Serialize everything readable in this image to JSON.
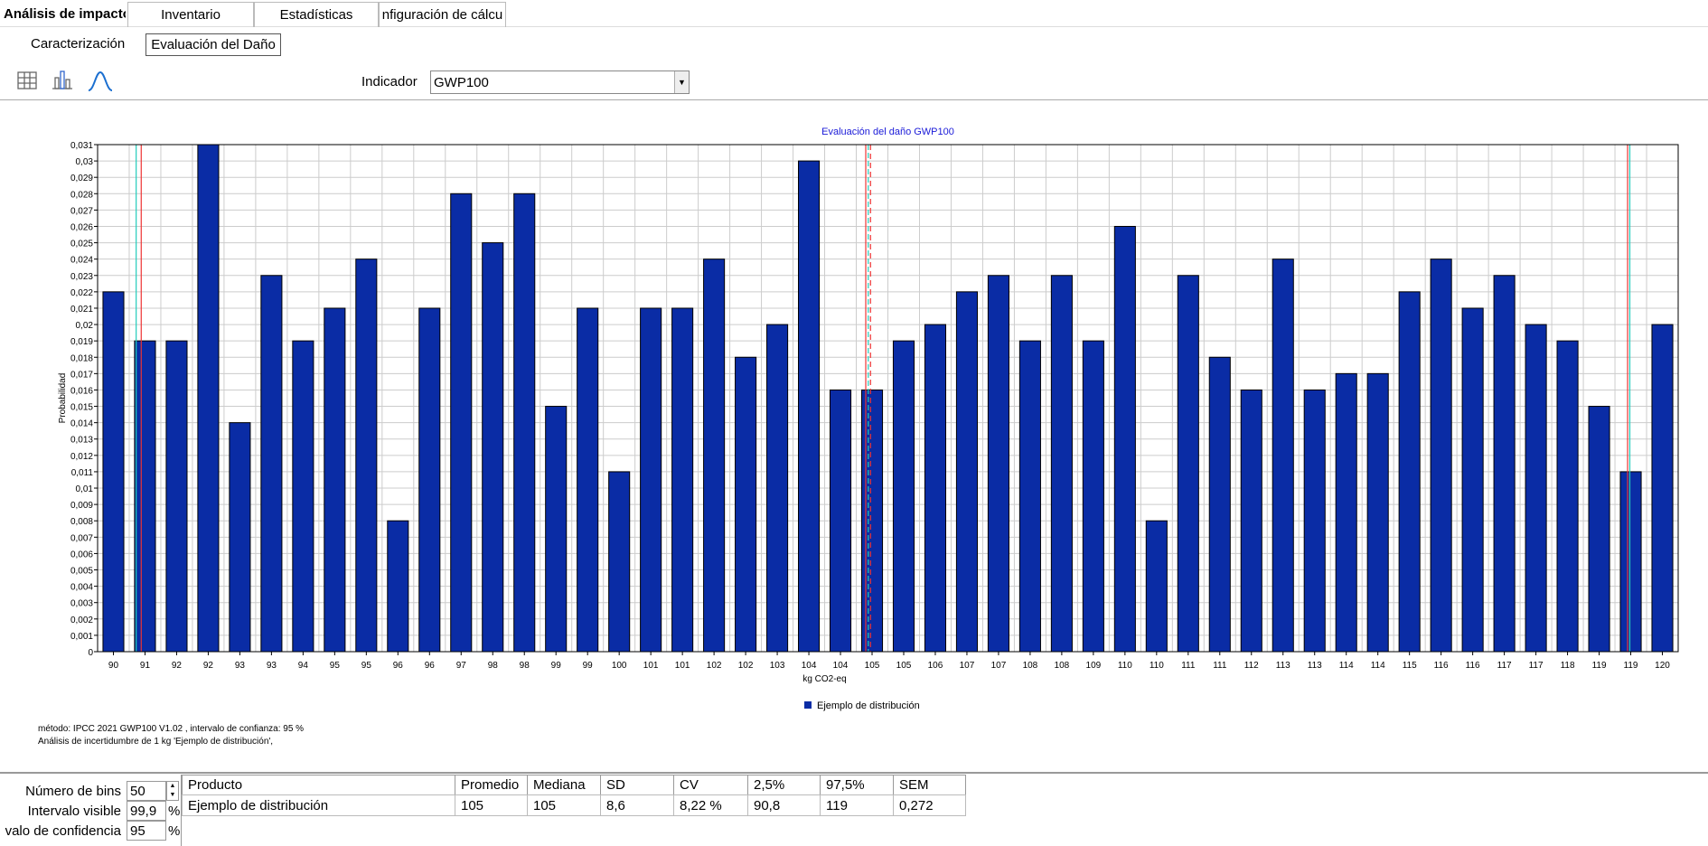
{
  "tabs": [
    "Análisis de impacto",
    "Inventario",
    "Estadísticas",
    "nfiguración de cálcu"
  ],
  "subtabs": [
    "Caracterización",
    "Evaluación del Daño"
  ],
  "indicator_label": "Indicador",
  "indicator_value": "GWP100",
  "chart_data": {
    "type": "bar",
    "title": "Evaluación del daño GWP100",
    "x_label": "kg CO2-eq",
    "y_label": "Probabilidad",
    "categories": [
      "90",
      "91",
      "92",
      "92",
      "93",
      "93",
      "94",
      "95",
      "95",
      "96",
      "96",
      "97",
      "98",
      "98",
      "99",
      "99",
      "100",
      "101",
      "101",
      "102",
      "102",
      "103",
      "104",
      "104",
      "105",
      "105",
      "106",
      "107",
      "107",
      "108",
      "108",
      "109",
      "110",
      "110",
      "111",
      "111",
      "112",
      "113",
      "113",
      "114",
      "114",
      "115",
      "116",
      "116",
      "117",
      "117",
      "118",
      "119",
      "119",
      "120"
    ],
    "series": [
      {
        "name": "Ejemplo de distribución",
        "color": "#0a2ca5",
        "values": [
          0.022,
          0.019,
          0.019,
          0.031,
          0.014,
          0.023,
          0.019,
          0.021,
          0.024,
          0.008,
          0.021,
          0.028,
          0.025,
          0.028,
          0.015,
          0.021,
          0.011,
          0.021,
          0.021,
          0.024,
          0.018,
          0.02,
          0.03,
          0.016,
          0.016,
          0.019,
          0.02,
          0.022,
          0.023,
          0.019,
          0.023,
          0.019,
          0.026,
          0.008,
          0.023,
          0.018,
          0.016,
          0.024,
          0.016,
          0.017,
          0.017,
          0.022,
          0.024,
          0.021,
          0.023,
          0.02,
          0.019,
          0.015,
          0.011,
          0.02
        ]
      }
    ],
    "ylim": [
      0,
      0.031
    ],
    "yticks": [
      0,
      {
        "value": 0.001,
        "label": "0,001"
      },
      {
        "value": 0.002,
        "label": "0,002"
      },
      {
        "value": 0.003,
        "label": "0,003"
      },
      {
        "value": 0.004,
        "label": "0,004"
      },
      {
        "value": 0.005,
        "label": "0,005"
      },
      {
        "value": 0.006,
        "label": "0,006"
      },
      {
        "value": 0.007,
        "label": "0,007"
      },
      {
        "value": 0.008,
        "label": "0,008"
      },
      {
        "value": 0.009,
        "label": "0,009"
      },
      {
        "value": 0.01,
        "label": "0,01"
      },
      {
        "value": 0.011,
        "label": "0,011"
      },
      {
        "value": 0.012,
        "label": "0,012"
      },
      {
        "value": 0.013,
        "label": "0,013"
      },
      {
        "value": 0.014,
        "label": "0,014"
      },
      {
        "value": 0.015,
        "label": "0,015"
      },
      {
        "value": 0.016,
        "label": "0,016"
      },
      {
        "value": 0.017,
        "label": "0,017"
      },
      {
        "value": 0.018,
        "label": "0,018"
      },
      {
        "value": 0.019,
        "label": "0,019"
      },
      {
        "value": 0.02,
        "label": "0,02"
      },
      {
        "value": 0.021,
        "label": "0,021"
      },
      {
        "value": 0.022,
        "label": "0,022"
      },
      {
        "value": 0.023,
        "label": "0,023"
      },
      {
        "value": 0.024,
        "label": "0,024"
      },
      {
        "value": 0.025,
        "label": "0,025"
      },
      {
        "value": 0.026,
        "label": "0,026"
      },
      {
        "value": 0.027,
        "label": "0,027"
      },
      {
        "value": 0.028,
        "label": "0,028"
      },
      {
        "value": 0.029,
        "label": "0,029"
      },
      {
        "value": 0.03,
        "label": "0,03"
      },
      {
        "value": 0.031,
        "label": "0,031"
      }
    ],
    "grid": true,
    "legend": "bottom"
  },
  "notes": [
    "método: IPCC 2021 GWP100 V1.02 , intervalo de confianza: 95 %",
    "Análisis de incertidumbre de  1 kg 'Ejemplo de distribución',"
  ],
  "controls": [
    {
      "label": "Número de bins",
      "value": "50"
    },
    {
      "label": "Intervalo visible",
      "value": "99,9",
      "unit": "%"
    },
    {
      "label": "valo de confidencia",
      "value": "95",
      "unit": "%"
    }
  ],
  "table": {
    "headers": [
      "Producto",
      "Promedio",
      "Mediana",
      "SD",
      "CV",
      "2,5%",
      "97,5%",
      "SEM"
    ],
    "rows": [
      [
        "Ejemplo de distribución",
        "105",
        "105",
        "8,6",
        "8,22 %",
        "90,8",
        "119",
        "0,272"
      ]
    ]
  }
}
